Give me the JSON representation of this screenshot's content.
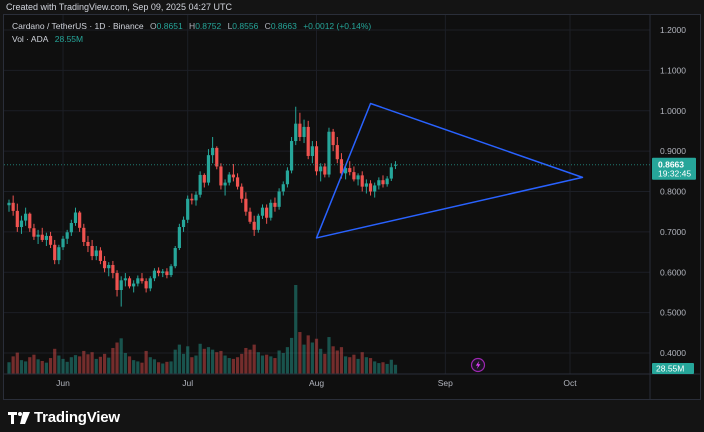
{
  "header": {
    "created_text": "Created with TradingView.com, Sep 09, 2025 04:27 UTC"
  },
  "legend": {
    "symbol": "Cardano / TetherUS · 1D · Binance",
    "open_label": "O",
    "open": "0.8651",
    "high_label": "H",
    "high": "0.8752",
    "low_label": "L",
    "low": "0.8556",
    "close_label": "C",
    "close": "0.8663",
    "change": "+0.0012 (+0.14%)",
    "volume_label": "Vol · ADA",
    "volume": "28.55M"
  },
  "colors": {
    "up": "#26a69a",
    "down": "#ef5350",
    "pattern": "#2962ff",
    "badge": "#26a69a",
    "background": "#0f0f0f"
  },
  "footer": {
    "brand": "TradingView",
    "logo_icon": "tradingview-logo-icon"
  },
  "chart_data": {
    "type": "candlestick",
    "price_scale": {
      "min": 0.35,
      "max": 1.25,
      "ticks": [
        "1.2000",
        "1.1000",
        "1.0000",
        "0.9000",
        "0.8000",
        "0.7000",
        "0.6000",
        "0.5000",
        "0.4000"
      ]
    },
    "time_axis": {
      "labels": [
        "Jun",
        "Jul",
        "Aug",
        "Sep",
        "Oct"
      ],
      "start": "2025-05-19",
      "label_dates": [
        "2025-06-01",
        "2025-07-01",
        "2025-08-01",
        "2025-09-01",
        "2025-10-01"
      ]
    },
    "last_price": "0.8663",
    "countdown": "19:32:45",
    "volume_badge": "28.55M",
    "pattern": {
      "name": "triangle",
      "points": [
        [
          "2025-08-14",
          1.018
        ],
        [
          "2025-10-04",
          0.835
        ],
        [
          "2025-08-01",
          0.685
        ]
      ]
    },
    "candles": [
      [
        0.766,
        0.78,
        0.75,
        0.772,
        28
      ],
      [
        0.772,
        0.79,
        0.74,
        0.752,
        42
      ],
      [
        0.752,
        0.77,
        0.7,
        0.712,
        51
      ],
      [
        0.712,
        0.74,
        0.695,
        0.728,
        33
      ],
      [
        0.728,
        0.76,
        0.715,
        0.745,
        30
      ],
      [
        0.745,
        0.748,
        0.7,
        0.709,
        40
      ],
      [
        0.709,
        0.72,
        0.68,
        0.688,
        46
      ],
      [
        0.688,
        0.705,
        0.67,
        0.693,
        35
      ],
      [
        0.693,
        0.71,
        0.675,
        0.68,
        31
      ],
      [
        0.68,
        0.698,
        0.665,
        0.69,
        27
      ],
      [
        0.69,
        0.7,
        0.66,
        0.668,
        38
      ],
      [
        0.668,
        0.68,
        0.62,
        0.63,
        60
      ],
      [
        0.63,
        0.668,
        0.62,
        0.662,
        44
      ],
      [
        0.662,
        0.69,
        0.655,
        0.683,
        36
      ],
      [
        0.683,
        0.705,
        0.67,
        0.699,
        29
      ],
      [
        0.699,
        0.73,
        0.69,
        0.722,
        40
      ],
      [
        0.722,
        0.76,
        0.715,
        0.748,
        45
      ],
      [
        0.748,
        0.752,
        0.7,
        0.71,
        42
      ],
      [
        0.71,
        0.72,
        0.665,
        0.675,
        55
      ],
      [
        0.675,
        0.69,
        0.65,
        0.665,
        47
      ],
      [
        0.665,
        0.68,
        0.63,
        0.64,
        52
      ],
      [
        0.64,
        0.665,
        0.63,
        0.654,
        36
      ],
      [
        0.654,
        0.662,
        0.62,
        0.628,
        41
      ],
      [
        0.628,
        0.64,
        0.6,
        0.61,
        48
      ],
      [
        0.61,
        0.625,
        0.59,
        0.618,
        39
      ],
      [
        0.618,
        0.628,
        0.585,
        0.598,
        62
      ],
      [
        0.598,
        0.605,
        0.54,
        0.556,
        75
      ],
      [
        0.556,
        0.59,
        0.515,
        0.58,
        85
      ],
      [
        0.58,
        0.598,
        0.565,
        0.585,
        50
      ],
      [
        0.585,
        0.59,
        0.56,
        0.565,
        42
      ],
      [
        0.565,
        0.58,
        0.55,
        0.572,
        33
      ],
      [
        0.572,
        0.592,
        0.565,
        0.585,
        30
      ],
      [
        0.585,
        0.598,
        0.572,
        0.578,
        27
      ],
      [
        0.578,
        0.585,
        0.55,
        0.56,
        55
      ],
      [
        0.56,
        0.59,
        0.553,
        0.585,
        40
      ],
      [
        0.585,
        0.61,
        0.578,
        0.604,
        35
      ],
      [
        0.604,
        0.612,
        0.59,
        0.598,
        28
      ],
      [
        0.598,
        0.608,
        0.588,
        0.602,
        25
      ],
      [
        0.602,
        0.61,
        0.585,
        0.593,
        29
      ],
      [
        0.593,
        0.62,
        0.588,
        0.615,
        30
      ],
      [
        0.615,
        0.665,
        0.61,
        0.66,
        58
      ],
      [
        0.66,
        0.72,
        0.655,
        0.712,
        70
      ],
      [
        0.712,
        0.738,
        0.7,
        0.73,
        48
      ],
      [
        0.73,
        0.79,
        0.722,
        0.782,
        66
      ],
      [
        0.782,
        0.795,
        0.768,
        0.778,
        40
      ],
      [
        0.778,
        0.8,
        0.765,
        0.792,
        44
      ],
      [
        0.792,
        0.85,
        0.785,
        0.841,
        72
      ],
      [
        0.841,
        0.845,
        0.81,
        0.822,
        60
      ],
      [
        0.822,
        0.905,
        0.815,
        0.89,
        64
      ],
      [
        0.89,
        0.935,
        0.87,
        0.908,
        58
      ],
      [
        0.908,
        0.912,
        0.855,
        0.862,
        52
      ],
      [
        0.862,
        0.87,
        0.805,
        0.815,
        55
      ],
      [
        0.815,
        0.83,
        0.79,
        0.822,
        44
      ],
      [
        0.822,
        0.848,
        0.815,
        0.842,
        38
      ],
      [
        0.842,
        0.868,
        0.825,
        0.835,
        36
      ],
      [
        0.835,
        0.845,
        0.805,
        0.812,
        40
      ],
      [
        0.812,
        0.82,
        0.772,
        0.782,
        48
      ],
      [
        0.782,
        0.798,
        0.74,
        0.75,
        62
      ],
      [
        0.75,
        0.76,
        0.72,
        0.725,
        58
      ],
      [
        0.725,
        0.74,
        0.69,
        0.705,
        70
      ],
      [
        0.705,
        0.745,
        0.698,
        0.74,
        52
      ],
      [
        0.74,
        0.768,
        0.732,
        0.76,
        44
      ],
      [
        0.76,
        0.768,
        0.72,
        0.735,
        46
      ],
      [
        0.735,
        0.78,
        0.728,
        0.772,
        42
      ],
      [
        0.772,
        0.785,
        0.75,
        0.762,
        38
      ],
      [
        0.762,
        0.808,
        0.755,
        0.8,
        56
      ],
      [
        0.8,
        0.825,
        0.79,
        0.818,
        50
      ],
      [
        0.818,
        0.86,
        0.81,
        0.852,
        64
      ],
      [
        0.852,
        0.935,
        0.845,
        0.925,
        86
      ],
      [
        0.925,
        1.01,
        0.915,
        0.968,
        212
      ],
      [
        0.968,
        0.995,
        0.925,
        0.935,
        100
      ],
      [
        0.935,
        0.978,
        0.92,
        0.96,
        70
      ],
      [
        0.96,
        0.975,
        0.88,
        0.888,
        92
      ],
      [
        0.888,
        0.925,
        0.87,
        0.912,
        75
      ],
      [
        0.912,
        0.925,
        0.84,
        0.85,
        84
      ],
      [
        0.85,
        0.87,
        0.825,
        0.862,
        60
      ],
      [
        0.862,
        0.87,
        0.835,
        0.842,
        48
      ],
      [
        0.842,
        0.958,
        0.835,
        0.948,
        88
      ],
      [
        0.948,
        0.955,
        0.9,
        0.915,
        66
      ],
      [
        0.915,
        0.935,
        0.87,
        0.88,
        56
      ],
      [
        0.88,
        0.895,
        0.832,
        0.845,
        64
      ],
      [
        0.845,
        0.865,
        0.83,
        0.858,
        42
      ],
      [
        0.858,
        0.875,
        0.84,
        0.848,
        40
      ],
      [
        0.848,
        0.862,
        0.825,
        0.83,
        46
      ],
      [
        0.83,
        0.845,
        0.815,
        0.84,
        36
      ],
      [
        0.84,
        0.85,
        0.8,
        0.812,
        52
      ],
      [
        0.812,
        0.83,
        0.795,
        0.82,
        40
      ],
      [
        0.82,
        0.828,
        0.79,
        0.8,
        38
      ],
      [
        0.8,
        0.822,
        0.785,
        0.815,
        30
      ],
      [
        0.815,
        0.835,
        0.805,
        0.828,
        26
      ],
      [
        0.828,
        0.84,
        0.81,
        0.818,
        28
      ],
      [
        0.818,
        0.838,
        0.812,
        0.832,
        24
      ],
      [
        0.832,
        0.87,
        0.826,
        0.86,
        34
      ],
      [
        0.8651,
        0.8752,
        0.8556,
        0.8663,
        22
      ]
    ]
  }
}
